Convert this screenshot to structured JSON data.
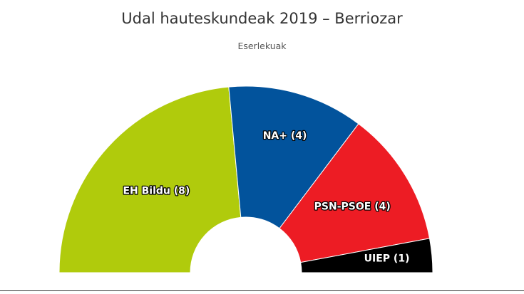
{
  "chart_data": {
    "type": "pie",
    "variant": "parliament-semicircle",
    "title": "Udal hauteskundeak 2019 – Berriozar",
    "subtitle": "Eserlekuak",
    "categories": [
      "EH Bildu",
      "NA+",
      "PSN-PSOE",
      "UIEP"
    ],
    "values": [
      8,
      4,
      4,
      1
    ],
    "labels": [
      "EH Bildu (8)",
      "NA+ (4)",
      "PSN-PSOE (4)",
      "UIEP (1)"
    ],
    "colors": [
      "#b0cb0c",
      "#02539c",
      "#ed1c24",
      "#000000"
    ],
    "total": 17,
    "legend": false
  }
}
